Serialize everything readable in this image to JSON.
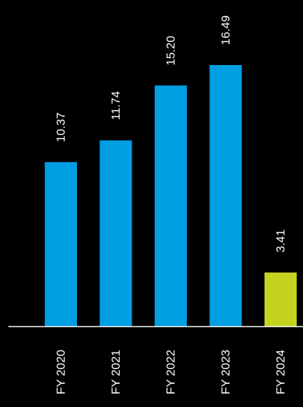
{
  "chart_data": {
    "type": "bar",
    "categories": [
      "FY 2020",
      "FY 2021",
      "FY 2022",
      "FY 2023",
      "FY 2024"
    ],
    "values": [
      10.37,
      11.74,
      15.2,
      16.49,
      3.41
    ],
    "value_labels": [
      "10.37",
      "11.74",
      "15.20",
      "16.49",
      "3.41"
    ],
    "ylim": [
      0,
      16.49
    ],
    "grid": false,
    "legend": "none",
    "text_orientation": "rotated-vertical"
  },
  "colors": {
    "background": "#000000",
    "bar_default": "#009ee3",
    "bar_highlight": "#c5d31f",
    "text": "#ffffff",
    "baseline": "#ffffff"
  },
  "highlight_index": 4
}
